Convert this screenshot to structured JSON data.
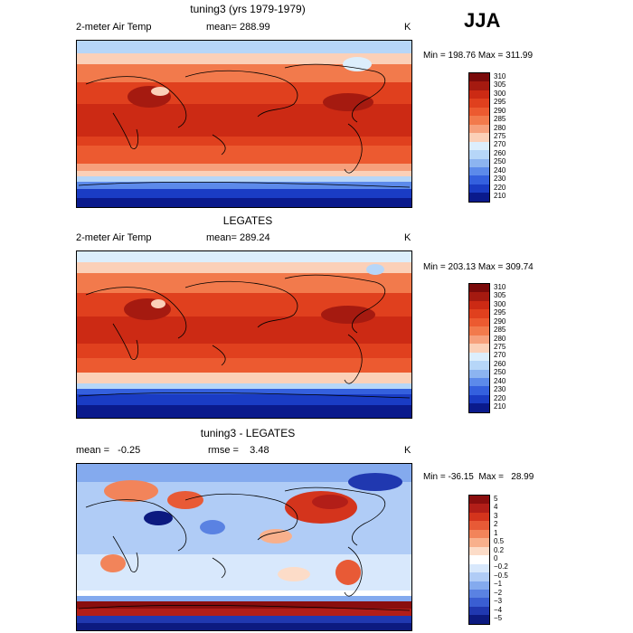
{
  "season": "JJA",
  "panels": [
    {
      "id": "model",
      "title": "tuning3 (yrs 1979-1979)",
      "left_label": "2-meter Air Temp",
      "center_label": "mean= 288.99",
      "units": "K",
      "minmax": "Min = 198.76  Max = 311.99",
      "levels": [
        "310",
        "305",
        "300",
        "295",
        "290",
        "285",
        "280",
        "275",
        "270",
        "260",
        "250",
        "240",
        "230",
        "220",
        "210"
      ]
    },
    {
      "id": "obs",
      "title": "LEGATES",
      "left_label": "2-meter Air Temp",
      "center_label": "mean= 289.24",
      "units": "K",
      "minmax": "Min = 203.13  Max = 309.74",
      "levels": [
        "310",
        "305",
        "300",
        "295",
        "290",
        "285",
        "280",
        "275",
        "270",
        "260",
        "250",
        "240",
        "230",
        "220",
        "210"
      ]
    },
    {
      "id": "diff",
      "title": "tuning3 - LEGATES",
      "left_label": "mean =   -0.25",
      "center_label": "rmse =    3.48",
      "units": "K",
      "minmax": "Min = -36.15  Max =   28.99",
      "levels": [
        "5",
        "4",
        "3",
        "2",
        "1",
        "0.5",
        "0.2",
        "0",
        "−0.2",
        "−0.5",
        "−1",
        "−2",
        "−3",
        "−4",
        "−5"
      ]
    }
  ],
  "colors": {
    "temp_scale": [
      "#7a0a0a",
      "#a51a10",
      "#cc2a14",
      "#e0401e",
      "#ec5a30",
      "#f27a4c",
      "#f6a07c",
      "#fbd0b8",
      "#dceefc",
      "#b6d6f8",
      "#8cb4f0",
      "#5c8aea",
      "#3460de",
      "#1a3cc4",
      "#0a1a8c"
    ],
    "diff_scale": [
      "#8a0e0e",
      "#b21e18",
      "#d4341c",
      "#e85a36",
      "#f2845a",
      "#f8b08c",
      "#fcdcc8",
      "#ffffff",
      "#d8e8fc",
      "#b0ccf6",
      "#84aaee",
      "#5a82e2",
      "#3a5ed2",
      "#2038b0",
      "#0c1a80"
    ]
  }
}
